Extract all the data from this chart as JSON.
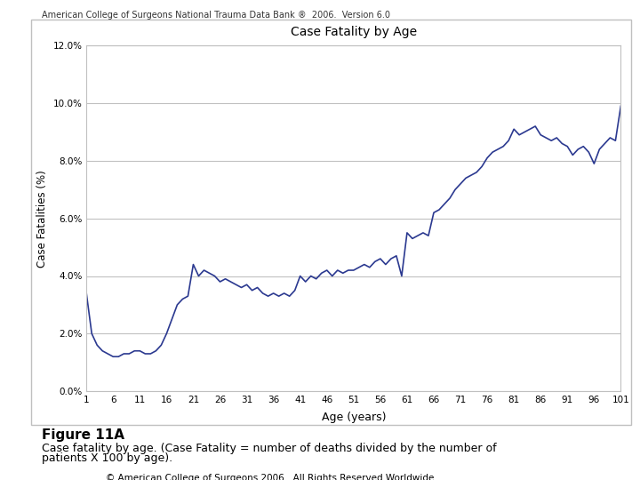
{
  "header_text": "American College of Surgeons National Trauma Data Bank ®  2006.  Version 6.0",
  "title": "Case Fatality by Age",
  "xlabel": "Age (years)",
  "ylabel": "Case Fatalities (%)",
  "figure11a_label": "Figure 11A",
  "caption_line1": "Case fatality by age. (Case Fatality = number of deaths divided by the number of",
  "caption_line2": "patients X 100 by age).",
  "footer": "© American College of Surgeons 2006.  All Rights Reserved Worldwide",
  "line_color": "#2B3990",
  "background_color": "#ffffff",
  "plot_bg_color": "#ffffff",
  "outer_box_color": "#c0c0c0",
  "grid_color": "#c0c0c0",
  "ylim": [
    0.0,
    0.12
  ],
  "yticks": [
    0.0,
    0.02,
    0.04,
    0.06,
    0.08,
    0.1,
    0.12
  ],
  "ytick_labels": [
    "0.0%",
    "2.0%",
    "4.0%",
    "6.0%",
    "8.0%",
    "10.0%",
    "12.0%"
  ],
  "xticks": [
    1,
    6,
    11,
    16,
    21,
    26,
    31,
    36,
    41,
    46,
    51,
    56,
    61,
    66,
    71,
    76,
    81,
    86,
    91,
    96,
    101
  ],
  "ages": [
    1,
    2,
    3,
    4,
    5,
    6,
    7,
    8,
    9,
    10,
    11,
    12,
    13,
    14,
    15,
    16,
    17,
    18,
    19,
    20,
    21,
    22,
    23,
    24,
    25,
    26,
    27,
    28,
    29,
    30,
    31,
    32,
    33,
    34,
    35,
    36,
    37,
    38,
    39,
    40,
    41,
    42,
    43,
    44,
    45,
    46,
    47,
    48,
    49,
    50,
    51,
    52,
    53,
    54,
    55,
    56,
    57,
    58,
    59,
    60,
    61,
    62,
    63,
    64,
    65,
    66,
    67,
    68,
    69,
    70,
    71,
    72,
    73,
    74,
    75,
    76,
    77,
    78,
    79,
    80,
    81,
    82,
    83,
    84,
    85,
    86,
    87,
    88,
    89,
    90,
    91,
    92,
    93,
    94,
    95,
    96,
    97,
    98,
    99,
    100,
    101
  ],
  "values": [
    0.034,
    0.02,
    0.016,
    0.014,
    0.013,
    0.012,
    0.012,
    0.013,
    0.013,
    0.014,
    0.014,
    0.013,
    0.013,
    0.014,
    0.016,
    0.02,
    0.025,
    0.03,
    0.032,
    0.033,
    0.044,
    0.04,
    0.042,
    0.041,
    0.04,
    0.038,
    0.039,
    0.038,
    0.037,
    0.036,
    0.037,
    0.035,
    0.036,
    0.034,
    0.033,
    0.034,
    0.033,
    0.034,
    0.033,
    0.035,
    0.04,
    0.038,
    0.04,
    0.039,
    0.041,
    0.042,
    0.04,
    0.042,
    0.041,
    0.042,
    0.042,
    0.043,
    0.044,
    0.043,
    0.045,
    0.046,
    0.044,
    0.046,
    0.047,
    0.04,
    0.055,
    0.053,
    0.054,
    0.055,
    0.054,
    0.062,
    0.063,
    0.065,
    0.067,
    0.07,
    0.072,
    0.074,
    0.075,
    0.076,
    0.078,
    0.081,
    0.083,
    0.084,
    0.085,
    0.087,
    0.091,
    0.089,
    0.09,
    0.091,
    0.092,
    0.089,
    0.088,
    0.087,
    0.088,
    0.086,
    0.085,
    0.082,
    0.084,
    0.085,
    0.083,
    0.079,
    0.084,
    0.086,
    0.088,
    0.087,
    0.099
  ]
}
